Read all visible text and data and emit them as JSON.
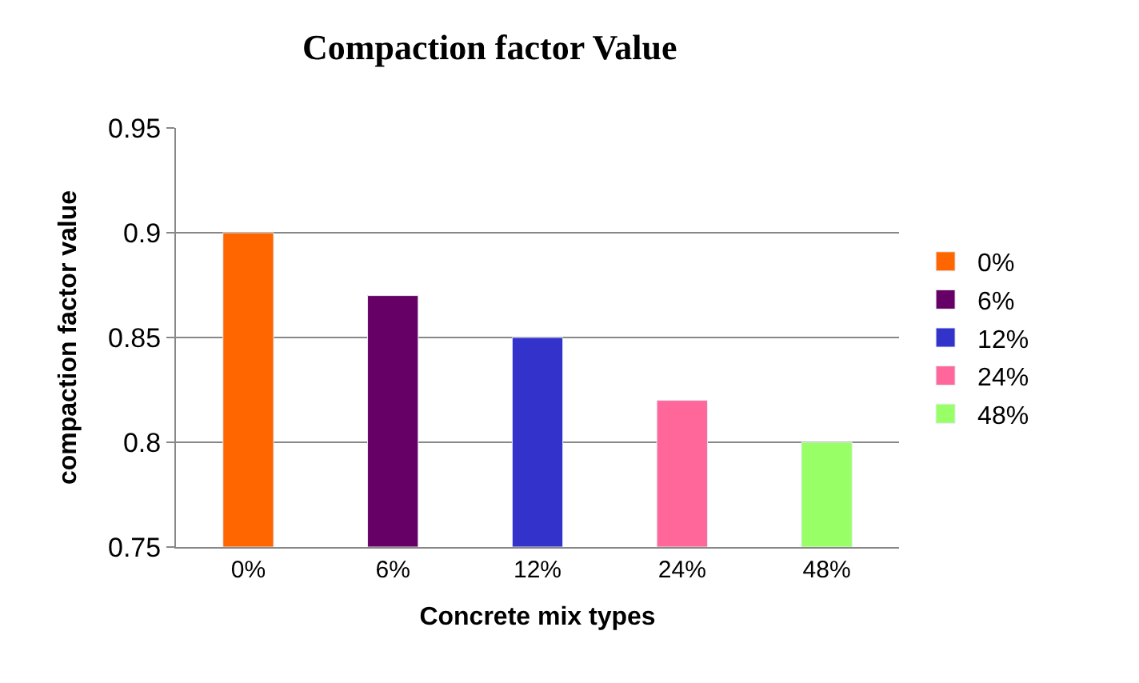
{
  "chart_data": {
    "type": "bar",
    "title": "Compaction factor Value",
    "xlabel": "Concrete mix types",
    "ylabel": "compaction factor value",
    "categories": [
      "0%",
      "6%",
      "12%",
      "24%",
      "48%"
    ],
    "series": [
      {
        "name": "0%",
        "color": "#ff6600",
        "values": [
          0.9,
          null,
          null,
          null,
          null
        ]
      },
      {
        "name": "6%",
        "color": "#660066",
        "values": [
          null,
          0.87,
          null,
          null,
          null
        ]
      },
      {
        "name": "12%",
        "color": "#3333cc",
        "values": [
          null,
          null,
          0.85,
          null,
          null
        ]
      },
      {
        "name": "24%",
        "color": "#ff6699",
        "values": [
          null,
          null,
          null,
          0.82,
          null
        ]
      },
      {
        "name": "48%",
        "color": "#99ff66",
        "values": [
          null,
          null,
          null,
          null,
          0.8
        ]
      }
    ],
    "ylim": [
      0.75,
      0.95
    ],
    "yticks": [
      0.75,
      0.8,
      0.85,
      0.9,
      0.95
    ],
    "grid": "y",
    "legend": "right"
  }
}
